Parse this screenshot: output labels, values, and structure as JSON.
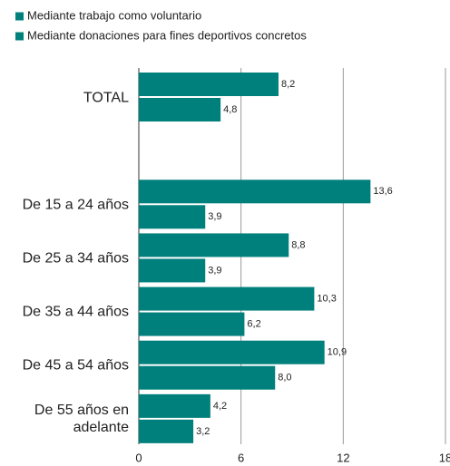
{
  "chart_data": {
    "type": "bar",
    "orientation": "horizontal",
    "categories": [
      "TOTAL",
      null,
      "De 15 a 24 años",
      "De 25 a 34 años",
      "De 35 a 44 años",
      "De 45 a 54 años",
      "De 55 años en adelante"
    ],
    "series": [
      {
        "name": "Mediante trabajo como voluntario",
        "color": "#00807c",
        "values": [
          8.2,
          null,
          13.6,
          8.8,
          10.3,
          10.9,
          4.2
        ],
        "value_labels": [
          "8,2",
          null,
          "13,6",
          "8,8",
          "10,3",
          "10,9",
          "4,2"
        ]
      },
      {
        "name": "Mediante donaciones para fines deportivos concretos",
        "color": "#00807c",
        "values": [
          4.8,
          null,
          3.9,
          3.9,
          6.2,
          8.0,
          3.2
        ],
        "value_labels": [
          "4,8",
          null,
          "3,9",
          "3,9",
          "6,2",
          "8,0",
          "3,2"
        ]
      }
    ],
    "xlim": [
      0,
      18
    ],
    "xticks": [
      0,
      6,
      12,
      18
    ],
    "grid": true
  }
}
